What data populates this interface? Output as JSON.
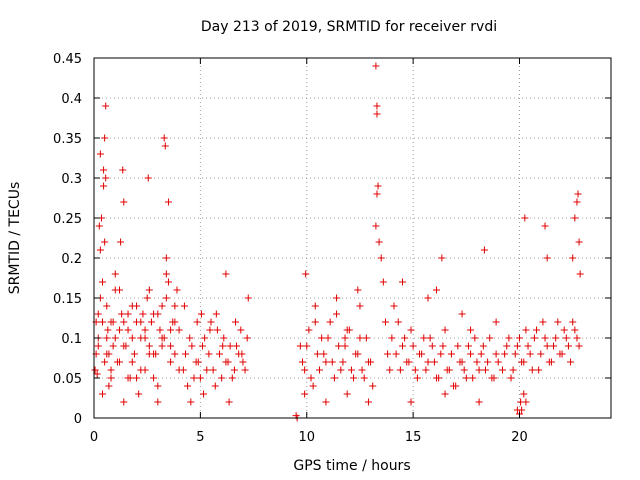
{
  "chart_data": {
    "type": "scatter",
    "title": "Day 213 of 2019, SRMTID for receiver rvdi",
    "xlabel": "GPS time / hours",
    "ylabel": "SRMTID / TECUs",
    "xlim": [
      0,
      24.3
    ],
    "ylim": [
      0,
      0.45
    ],
    "xticks": [
      0,
      5,
      10,
      15,
      20
    ],
    "xtick_labels": [
      "0",
      "5",
      "10",
      "15",
      "20"
    ],
    "yticks": [
      0,
      0.05,
      0.1,
      0.15,
      0.2,
      0.25,
      0.3,
      0.35,
      0.4,
      0.45
    ],
    "ytick_labels": [
      "0",
      "0.05",
      "0.1",
      "0.15",
      "0.2",
      "0.25",
      "0.3",
      "0.35",
      "0.4",
      "0.45"
    ],
    "grid": true,
    "marker": "+",
    "color": "#e00000",
    "series": [
      {
        "x": [
          0.05,
          0.1,
          0.15,
          0.2,
          0.25,
          0.3,
          0.35,
          0.4,
          0.45,
          0.5,
          0.55,
          0.6,
          0.65,
          0.7,
          0.8,
          0.9,
          1.0,
          1.1,
          1.2,
          1.3,
          1.4,
          1.5,
          1.6,
          1.7,
          1.8,
          1.9,
          2.0,
          2.1,
          2.2,
          2.3,
          2.4,
          2.5,
          2.6,
          2.7,
          2.8,
          2.9,
          3.0,
          3.1,
          3.2,
          3.3,
          3.4,
          3.5,
          3.6,
          3.7,
          3.8,
          3.9,
          4.0,
          0.1,
          0.2,
          0.3,
          0.4,
          0.5,
          0.6,
          0.7,
          0.8,
          0.9,
          1.0,
          1.2,
          1.4,
          1.6,
          1.8,
          2.0,
          2.2,
          2.4,
          2.6,
          2.8,
          3.0,
          3.2,
          3.4,
          3.6,
          3.8,
          4.0,
          0.2,
          0.4,
          0.6,
          0.8,
          1.0,
          1.2,
          1.4,
          1.6,
          1.8,
          2.0,
          2.2,
          2.4,
          2.6,
          2.8,
          3.0,
          3.2,
          3.4,
          3.6,
          3.8,
          0.3,
          0.55,
          0.5,
          0.45,
          1.4,
          2.55,
          3.3,
          3.35,
          3.5,
          1.35,
          1.25,
          4.2,
          4.4,
          4.6,
          4.8,
          5.0,
          5.2,
          5.4,
          5.6,
          5.8,
          6.0,
          6.2,
          6.4,
          6.6,
          6.8,
          7.0,
          7.2,
          4.3,
          4.5,
          4.7,
          4.9,
          5.1,
          5.3,
          5.5,
          5.7,
          5.9,
          6.1,
          6.3,
          6.5,
          6.7,
          6.9,
          7.1,
          4.25,
          4.55,
          4.85,
          5.15,
          5.45,
          5.75,
          6.05,
          6.35,
          6.65,
          6.95,
          7.25,
          5.05,
          6.2,
          9.5,
          9.55,
          9.7,
          9.9,
          10.1,
          10.3,
          10.5,
          10.7,
          10.9,
          11.1,
          11.3,
          11.5,
          11.7,
          11.9,
          12.1,
          12.3,
          12.5,
          12.7,
          12.9,
          13.1,
          9.8,
          10.0,
          10.2,
          10.4,
          10.6,
          10.8,
          11.0,
          11.2,
          11.4,
          11.6,
          11.8,
          12.0,
          12.2,
          12.4,
          12.6,
          12.8,
          13.0,
          9.9,
          10.4,
          10.9,
          11.4,
          11.9,
          12.4,
          12.9,
          9.95,
          11.8,
          12.5,
          13.25,
          13.3,
          13.3,
          13.35,
          13.3,
          13.25,
          13.4,
          13.5,
          13.6,
          13.7,
          13.8,
          13.9,
          14.0,
          14.2,
          14.4,
          14.6,
          14.8,
          15.0,
          15.2,
          15.4,
          15.6,
          15.8,
          16.0,
          16.2,
          16.4,
          16.6,
          16.8,
          17.0,
          17.2,
          17.4,
          17.6,
          17.8,
          18.0,
          18.2,
          18.4,
          18.6,
          18.8,
          19.0,
          14.3,
          14.5,
          14.7,
          14.9,
          15.1,
          15.3,
          15.5,
          15.7,
          15.9,
          16.1,
          16.3,
          16.5,
          16.7,
          16.9,
          17.1,
          17.3,
          17.5,
          17.7,
          17.9,
          18.1,
          18.3,
          18.5,
          18.7,
          18.9,
          14.1,
          14.9,
          15.7,
          16.5,
          17.3,
          18.1,
          18.9,
          14.5,
          16.1,
          17.7,
          18.35,
          16.35,
          19.2,
          19.4,
          19.6,
          19.8,
          20.0,
          20.2,
          20.4,
          20.6,
          20.8,
          21.0,
          21.2,
          21.4,
          21.6,
          21.8,
          22.0,
          22.2,
          22.4,
          22.6,
          22.8,
          19.3,
          19.5,
          19.7,
          19.9,
          20.1,
          20.3,
          20.5,
          20.7,
          20.9,
          21.1,
          21.3,
          21.5,
          21.7,
          21.9,
          22.1,
          22.3,
          22.5,
          22.7,
          19.9,
          20.0,
          20.05,
          20.1,
          20.2,
          20.3,
          20.25,
          21.2,
          21.3,
          22.5,
          22.6,
          22.7,
          22.75,
          22.8,
          22.85
        ],
        "y": [
          0.06,
          0.12,
          0.055,
          0.09,
          0.24,
          0.21,
          0.25,
          0.17,
          0.31,
          0.22,
          0.3,
          0.14,
          0.11,
          0.08,
          0.05,
          0.12,
          0.1,
          0.07,
          0.16,
          0.13,
          0.02,
          0.09,
          0.11,
          0.05,
          0.14,
          0.08,
          0.12,
          0.03,
          0.1,
          0.13,
          0.06,
          0.15,
          0.09,
          0.12,
          0.05,
          0.08,
          0.04,
          0.11,
          0.14,
          0.1,
          0.2,
          0.17,
          0.09,
          0.12,
          0.08,
          0.16,
          0.11,
          0.08,
          0.13,
          0.15,
          0.03,
          0.07,
          0.1,
          0.04,
          0.12,
          0.09,
          0.18,
          0.07,
          0.12,
          0.05,
          0.1,
          0.14,
          0.06,
          0.11,
          0.08,
          0.13,
          0.02,
          0.1,
          0.15,
          0.07,
          0.12,
          0.06,
          0.1,
          0.12,
          0.08,
          0.06,
          0.16,
          0.11,
          0.09,
          0.13,
          0.07,
          0.05,
          0.12,
          0.1,
          0.16,
          0.08,
          0.13,
          0.09,
          0.18,
          0.11,
          0.14,
          0.33,
          0.39,
          0.35,
          0.29,
          0.27,
          0.3,
          0.35,
          0.34,
          0.27,
          0.31,
          0.22,
          0.06,
          0.04,
          0.09,
          0.07,
          0.05,
          0.1,
          0.08,
          0.06,
          0.11,
          0.05,
          0.07,
          0.09,
          0.06,
          0.08,
          0.07,
          0.1,
          0.08,
          0.1,
          0.05,
          0.07,
          0.09,
          0.06,
          0.12,
          0.04,
          0.08,
          0.1,
          0.07,
          0.05,
          0.09,
          0.11,
          0.06,
          0.14,
          0.02,
          0.12,
          0.03,
          0.11,
          0.13,
          0.09,
          0.02,
          0.12,
          0.08,
          0.15,
          0.13,
          0.18,
          0.003,
          0.0,
          0.09,
          0.06,
          0.11,
          0.04,
          0.08,
          0.1,
          0.07,
          0.12,
          0.05,
          0.09,
          0.07,
          0.11,
          0.06,
          0.08,
          0.1,
          0.05,
          0.07,
          0.04,
          0.07,
          0.09,
          0.05,
          0.12,
          0.06,
          0.08,
          0.1,
          0.07,
          0.13,
          0.06,
          0.09,
          0.11,
          0.05,
          0.08,
          0.06,
          0.1,
          0.07,
          0.03,
          0.14,
          0.02,
          0.15,
          0.03,
          0.16,
          0.02,
          0.18,
          0.1,
          0.14,
          0.44,
          0.39,
          0.38,
          0.29,
          0.28,
          0.24,
          0.22,
          0.2,
          0.17,
          0.12,
          0.08,
          0.06,
          0.1,
          0.08,
          0.06,
          0.1,
          0.07,
          0.09,
          0.05,
          0.08,
          0.06,
          0.1,
          0.07,
          0.05,
          0.09,
          0.06,
          0.08,
          0.04,
          0.07,
          0.06,
          0.09,
          0.05,
          0.07,
          0.08,
          0.06,
          0.1,
          0.05,
          0.07,
          0.12,
          0.09,
          0.07,
          0.11,
          0.06,
          0.08,
          0.1,
          0.07,
          0.09,
          0.05,
          0.08,
          0.11,
          0.06,
          0.04,
          0.09,
          0.07,
          0.05,
          0.08,
          0.1,
          0.06,
          0.09,
          0.07,
          0.05,
          0.08,
          0.14,
          0.02,
          0.15,
          0.03,
          0.13,
          0.02,
          0.12,
          0.17,
          0.16,
          0.11,
          0.21,
          0.2,
          0.06,
          0.09,
          0.05,
          0.08,
          0.1,
          0.07,
          0.09,
          0.06,
          0.11,
          0.08,
          0.1,
          0.07,
          0.09,
          0.12,
          0.08,
          0.1,
          0.07,
          0.11,
          0.09,
          0.08,
          0.1,
          0.06,
          0.09,
          0.07,
          0.11,
          0.08,
          0.1,
          0.06,
          0.12,
          0.09,
          0.07,
          0.1,
          0.08,
          0.11,
          0.09,
          0.12,
          0.1,
          0.01,
          0.005,
          0.02,
          0.01,
          0.03,
          0.02,
          0.25,
          0.24,
          0.2,
          0.2,
          0.25,
          0.27,
          0.28,
          0.22,
          0.18
        ]
      }
    ]
  }
}
